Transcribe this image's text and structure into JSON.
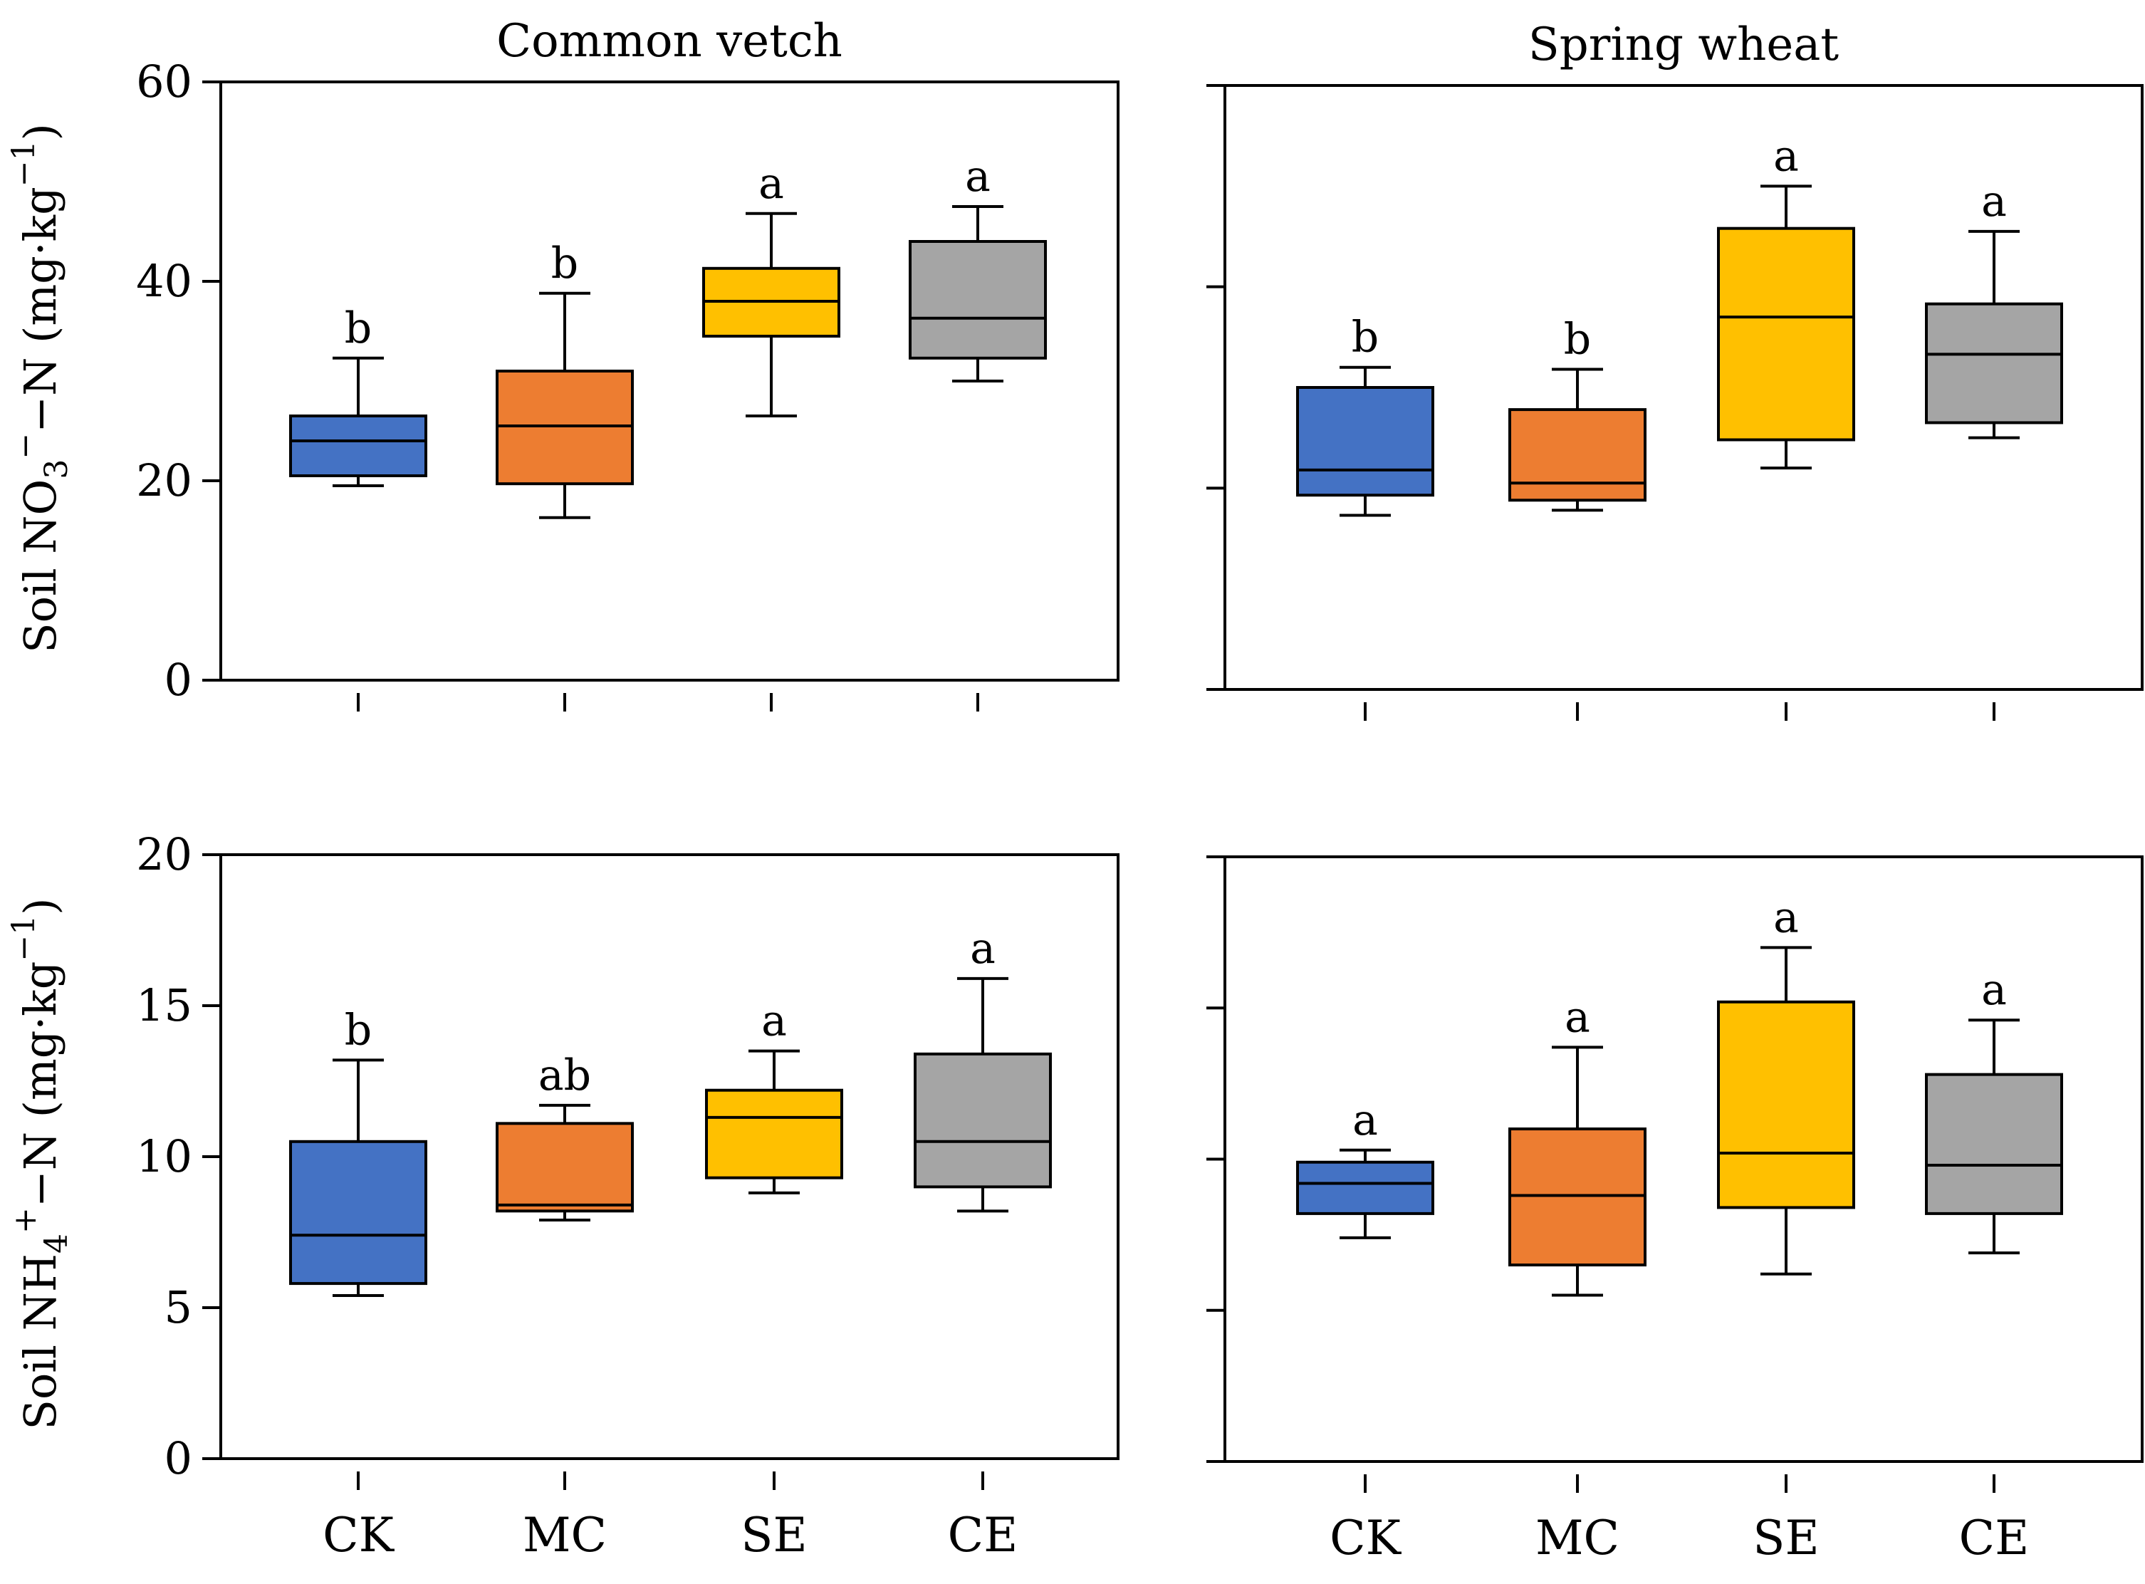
{
  "chart_data": [
    {
      "type": "box",
      "panel": "top-left",
      "title": "Common vetch",
      "ylabel": {
        "prefix": "Soil NO",
        "sub": "3",
        "sup": "−",
        "middle": "−N (mg·kg",
        "unit_sup": "−1",
        "suffix": ")"
      },
      "ylim": [
        0,
        60
      ],
      "yticks": [
        "0",
        "20",
        "40",
        "60"
      ],
      "categories": [
        "CK",
        "MC",
        "SE",
        "CE"
      ],
      "boxes": [
        {
          "category": "CK",
          "min": 19.5,
          "q1": 20.5,
          "median": 24.0,
          "q3": 26.5,
          "max": 32.3,
          "label": "b"
        },
        {
          "category": "MC",
          "min": 16.3,
          "q1": 19.7,
          "median": 25.5,
          "q3": 31.0,
          "max": 38.8,
          "label": "b"
        },
        {
          "category": "SE",
          "min": 26.5,
          "q1": 34.5,
          "median": 38.0,
          "q3": 41.3,
          "max": 46.8,
          "label": "a"
        },
        {
          "category": "CE",
          "min": 30.0,
          "q1": 32.3,
          "median": 36.3,
          "q3": 44.0,
          "max": 47.5,
          "label": "a"
        }
      ]
    },
    {
      "type": "box",
      "panel": "top-right",
      "title": "Spring wheat",
      "ylim": [
        0,
        60
      ],
      "yticks": [
        "",
        "",
        "",
        ""
      ],
      "categories": [
        "CK",
        "MC",
        "SE",
        "CE"
      ],
      "boxes": [
        {
          "category": "CK",
          "min": 17.3,
          "q1": 19.3,
          "median": 21.8,
          "q3": 30.0,
          "max": 32.0,
          "label": "b"
        },
        {
          "category": "MC",
          "min": 17.8,
          "q1": 18.8,
          "median": 20.5,
          "q3": 27.8,
          "max": 31.8,
          "label": "b"
        },
        {
          "category": "SE",
          "min": 22.0,
          "q1": 24.8,
          "median": 37.0,
          "q3": 45.8,
          "max": 50.0,
          "label": "a"
        },
        {
          "category": "CE",
          "min": 25.0,
          "q1": 26.5,
          "median": 33.3,
          "q3": 38.3,
          "max": 45.5,
          "label": "a"
        }
      ]
    },
    {
      "type": "box",
      "panel": "bottom-left",
      "title": "",
      "ylabel": {
        "prefix": "Soil NH",
        "sub": "4",
        "sup": "+",
        "middle": "−N (mg·kg",
        "unit_sup": "−1",
        "suffix": ")"
      },
      "ylim": [
        0,
        20
      ],
      "yticks": [
        "0",
        "5",
        "10",
        "15",
        "20"
      ],
      "categories": [
        "CK",
        "MC",
        "SE",
        "CE"
      ],
      "xticklabels": [
        "CK",
        "MC",
        "SE",
        "CE"
      ],
      "boxes": [
        {
          "category": "CK",
          "min": 5.4,
          "q1": 5.8,
          "median": 7.4,
          "q3": 10.5,
          "max": 13.2,
          "label": "b"
        },
        {
          "category": "MC",
          "min": 7.9,
          "q1": 8.2,
          "median": 8.4,
          "q3": 11.1,
          "max": 11.7,
          "label": "ab"
        },
        {
          "category": "SE",
          "min": 8.8,
          "q1": 9.3,
          "median": 11.3,
          "q3": 12.2,
          "max": 13.5,
          "label": "a"
        },
        {
          "category": "CE",
          "min": 8.2,
          "q1": 9.0,
          "median": 10.5,
          "q3": 13.4,
          "max": 15.9,
          "label": "a"
        }
      ]
    },
    {
      "type": "box",
      "panel": "bottom-right",
      "title": "",
      "ylim": [
        0,
        20
      ],
      "yticks": [
        "",
        "",
        "",
        "",
        ""
      ],
      "categories": [
        "CK",
        "MC",
        "SE",
        "CE"
      ],
      "xticklabels": [
        "CK",
        "MC",
        "SE",
        "CE"
      ],
      "boxes": [
        {
          "category": "CK",
          "min": 7.4,
          "q1": 8.2,
          "median": 9.2,
          "q3": 9.9,
          "max": 10.3,
          "label": "a"
        },
        {
          "category": "MC",
          "min": 5.5,
          "q1": 6.5,
          "median": 8.8,
          "q3": 11.0,
          "max": 13.7,
          "label": "a"
        },
        {
          "category": "SE",
          "min": 6.2,
          "q1": 8.4,
          "median": 10.2,
          "q3": 15.2,
          "max": 17.0,
          "label": "a"
        },
        {
          "category": "CE",
          "min": 6.9,
          "q1": 8.2,
          "median": 9.8,
          "q3": 12.8,
          "max": 14.6,
          "label": "a"
        }
      ]
    }
  ],
  "colors": {
    "CK": "#4472C4",
    "MC": "#ED7D31",
    "SE": "#FFC000",
    "CE": "#A5A5A5",
    "stroke": "#000000"
  }
}
